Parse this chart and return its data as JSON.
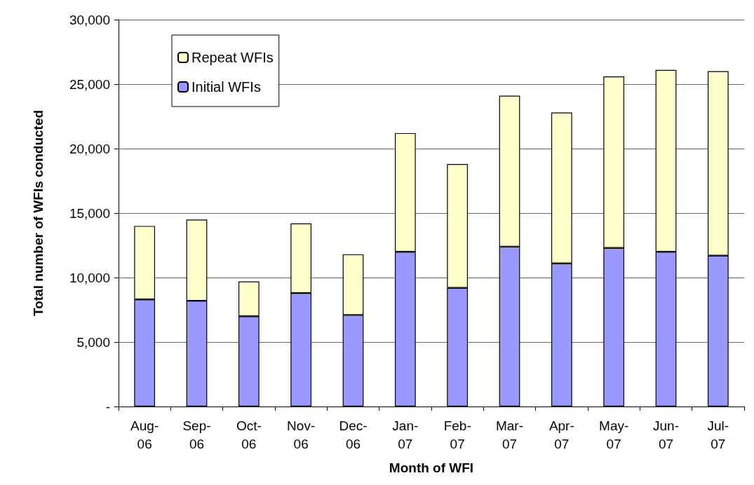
{
  "chart_data": {
    "type": "bar",
    "stacked": true,
    "xlabel": "Month of WFI",
    "ylabel": "Total number of WFIs conducted",
    "categories": [
      "Aug-06",
      "Sep-06",
      "Oct-06",
      "Nov-06",
      "Dec-06",
      "Jan-07",
      "Feb-07",
      "Mar-07",
      "Apr-07",
      "May-07",
      "Jun-07",
      "Jul-07"
    ],
    "series": [
      {
        "name": "Initial WFIs",
        "color": "#9999ff",
        "values": [
          8300,
          8200,
          7000,
          8800,
          7100,
          12000,
          9200,
          12400,
          11100,
          12300,
          12000,
          11700
        ]
      },
      {
        "name": "Repeat WFIs",
        "color": "#ffffcc",
        "values": [
          5700,
          6300,
          2700,
          5400,
          4700,
          9200,
          9600,
          11700,
          11700,
          13300,
          14100,
          14300
        ]
      }
    ],
    "ylim": [
      0,
      30000
    ],
    "yticks": [
      {
        "value": 0,
        "label": "-"
      },
      {
        "value": 5000,
        "label": "5,000"
      },
      {
        "value": 10000,
        "label": "10,000"
      },
      {
        "value": 15000,
        "label": "15,000"
      },
      {
        "value": 20000,
        "label": "20,000"
      },
      {
        "value": 25000,
        "label": "25,000"
      },
      {
        "value": 30000,
        "label": "30,000"
      }
    ],
    "grid": "y",
    "legend": "top left"
  }
}
